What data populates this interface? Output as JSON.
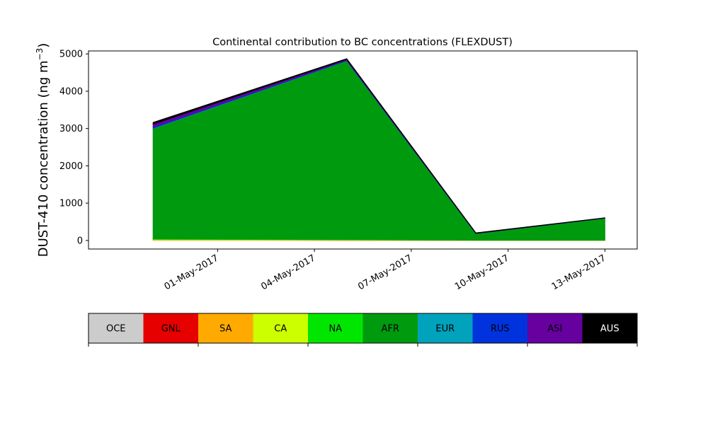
{
  "chart_data": {
    "type": "area",
    "stacked": true,
    "title": "Continental contribution to BC concentrations (FLEXDUST)",
    "ylabel": "DUST-410 concentration (ng m",
    "ylabel_superscript": "−3",
    "ylabel_suffix": ")",
    "xlabel": "",
    "grid": false,
    "ylim": [
      -230,
      5080
    ],
    "xlim": [
      "2017-04-27",
      "2017-05-14"
    ],
    "yticks": [
      0,
      1000,
      2000,
      3000,
      4000,
      5000
    ],
    "xticks": [
      "01-May-2017",
      "04-May-2017",
      "07-May-2017",
      "10-May-2017",
      "13-May-2017"
    ],
    "x": [
      "2017-04-29",
      "2017-05-05",
      "2017-05-09",
      "2017-05-13"
    ],
    "series": [
      {
        "name": "OCE",
        "color": "#cccccc",
        "values": [
          5,
          3,
          1,
          1
        ]
      },
      {
        "name": "GNL",
        "color": "#e60000",
        "values": [
          2,
          2,
          1,
          1
        ]
      },
      {
        "name": "SA",
        "color": "#ffaa00",
        "values": [
          5,
          4,
          1,
          1
        ]
      },
      {
        "name": "CA",
        "color": "#ccff00",
        "values": [
          20,
          10,
          2,
          2
        ]
      },
      {
        "name": "NA",
        "color": "#00e600",
        "values": [
          3,
          3,
          1,
          1
        ]
      },
      {
        "name": "AFR",
        "color": "#009a0e",
        "values": [
          2965,
          4790,
          178,
          589
        ]
      },
      {
        "name": "EUR",
        "color": "#00a3bb",
        "values": [
          10,
          5,
          1,
          1
        ]
      },
      {
        "name": "RUS",
        "color": "#0033dd",
        "values": [
          30,
          15,
          2,
          2
        ]
      },
      {
        "name": "ASI",
        "color": "#66009f",
        "values": [
          80,
          20,
          3,
          3
        ]
      },
      {
        "name": "AUS",
        "color": "#000000",
        "values": [
          40,
          18,
          10,
          4
        ]
      }
    ],
    "legend": {
      "placement": "bottom",
      "label_colors": [
        "#000000",
        "#000000",
        "#000000",
        "#000000",
        "#000000",
        "#000000",
        "#000000",
        "#000000",
        "#000000",
        "#ffffff"
      ]
    }
  }
}
